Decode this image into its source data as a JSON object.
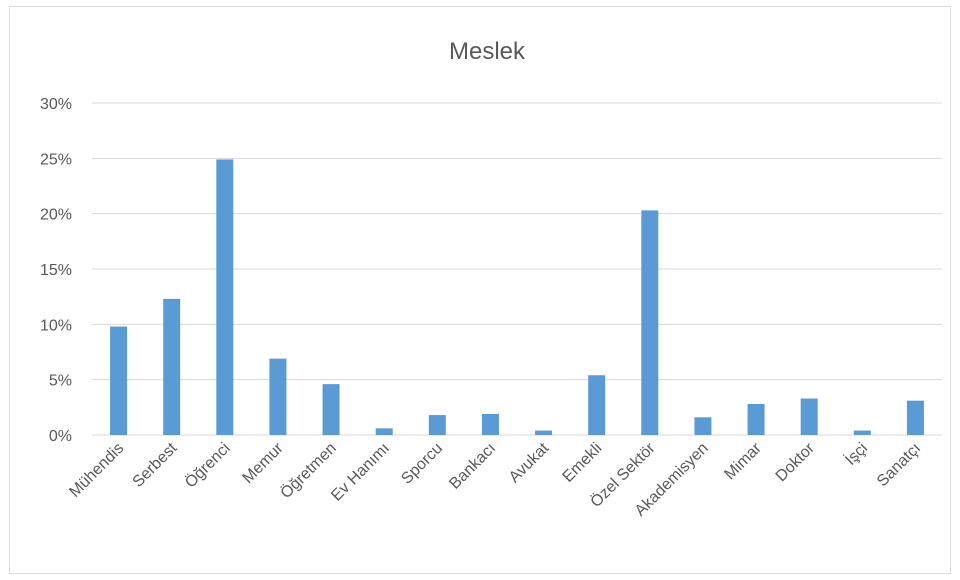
{
  "chart_data": {
    "type": "bar",
    "title": "Meslek",
    "xlabel": "",
    "ylabel": "",
    "categories": [
      "Mühendis",
      "Serbest",
      "Öğrenci",
      "Memur",
      "Öğretmen",
      "Ev Hanımı",
      "Sporcu",
      "Bankacı",
      "Avukat",
      "Emekli",
      "Özel Sektör",
      "Akademisyen",
      "Mimar",
      "Doktor",
      "İşçi",
      "Sanatçı"
    ],
    "values": [
      9.8,
      12.3,
      24.9,
      6.9,
      4.6,
      0.6,
      1.8,
      1.9,
      0.4,
      5.4,
      20.3,
      1.6,
      2.8,
      3.3,
      0.4,
      3.1
    ],
    "value_format": "percent",
    "ylim": [
      0,
      30
    ],
    "yticks": [
      0,
      5,
      10,
      15,
      20,
      25,
      30
    ],
    "ytick_labels": [
      "0%",
      "5%",
      "10%",
      "15%",
      "20%",
      "25%",
      "30%"
    ],
    "grid": true,
    "legend": "none",
    "colors": {
      "bar": "#5b9bd5",
      "grid": "#d9d9d9",
      "text": "#595959"
    }
  }
}
